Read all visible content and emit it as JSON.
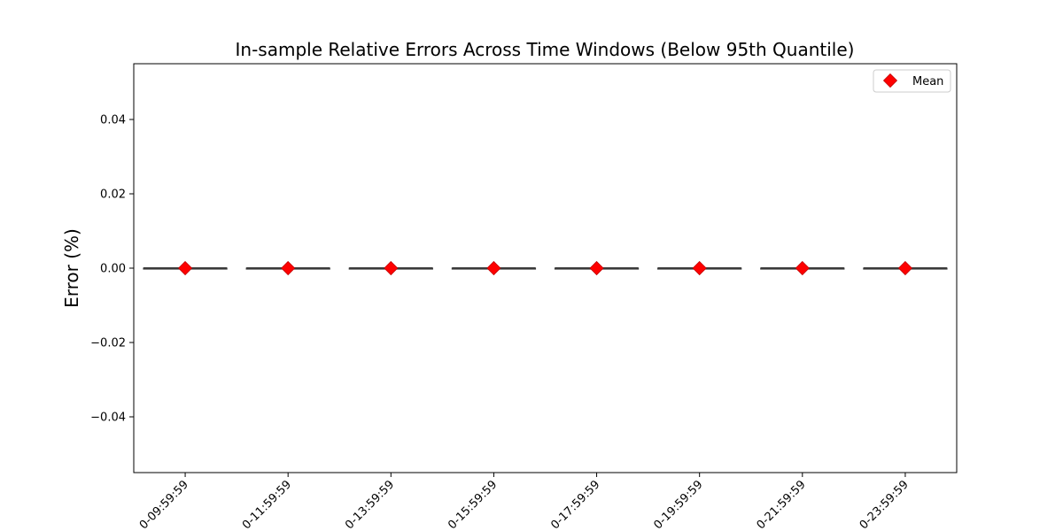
{
  "chart_data": {
    "type": "box",
    "title": "In-sample Relative Errors Across Time Windows (Below 95th Quantile)",
    "xlabel": "",
    "ylabel": "Error (%)",
    "ylim": [
      -0.055,
      0.055
    ],
    "yticks": [
      -0.04,
      -0.02,
      0.0,
      0.02,
      0.04
    ],
    "ytick_labels": [
      "−0.04",
      "−0.02",
      "0.00",
      "0.02",
      "0.04"
    ],
    "categories": [
      "0-09:59:59",
      "0-11:59:59",
      "0-13:59:59",
      "0-15:59:59",
      "0-17:59:59",
      "0-19:59:59",
      "0-21:59:59",
      "0-23:59:59"
    ],
    "median": [
      0,
      0,
      0,
      0,
      0,
      0,
      0,
      0
    ],
    "q1": [
      0,
      0,
      0,
      0,
      0,
      0,
      0,
      0
    ],
    "q3": [
      0,
      0,
      0,
      0,
      0,
      0,
      0,
      0
    ],
    "mean": [
      0,
      0,
      0,
      0,
      0,
      0,
      0,
      0
    ],
    "legend": {
      "entries": [
        "Mean"
      ],
      "placement": "top-right"
    },
    "colors": {
      "mean_marker": "#ff0000",
      "box_line": "#3a3a3a",
      "axes": "#000000"
    },
    "grid": false
  }
}
